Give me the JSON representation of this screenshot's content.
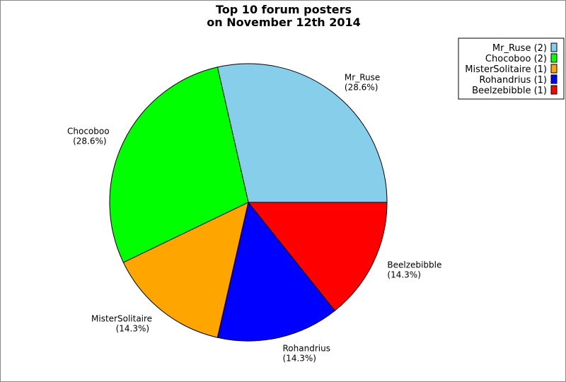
{
  "chart_data": {
    "type": "pie",
    "title": "Top 10 forum posters",
    "subtitle": "on November 12th 2014",
    "legend_position": "top-right",
    "slices": [
      {
        "label": "Mr_Ruse",
        "value": 2,
        "percent": "28.6%",
        "legend": "Mr_Ruse (2)",
        "color": "#87ceeb"
      },
      {
        "label": "Chocoboo",
        "value": 2,
        "percent": "28.6%",
        "legend": "Chocoboo (2)",
        "color": "#00ff00"
      },
      {
        "label": "MisterSolitaire",
        "value": 1,
        "percent": "14.3%",
        "legend": "MisterSolitaire (1)",
        "color": "#ffa500"
      },
      {
        "label": "Rohandrius",
        "value": 1,
        "percent": "14.3%",
        "legend": "Rohandrius (1)",
        "color": "#0000ff"
      },
      {
        "label": "Beelzebibble",
        "value": 1,
        "percent": "14.3%",
        "legend": "Beelzebibble (1)",
        "color": "#ff0000"
      }
    ]
  }
}
